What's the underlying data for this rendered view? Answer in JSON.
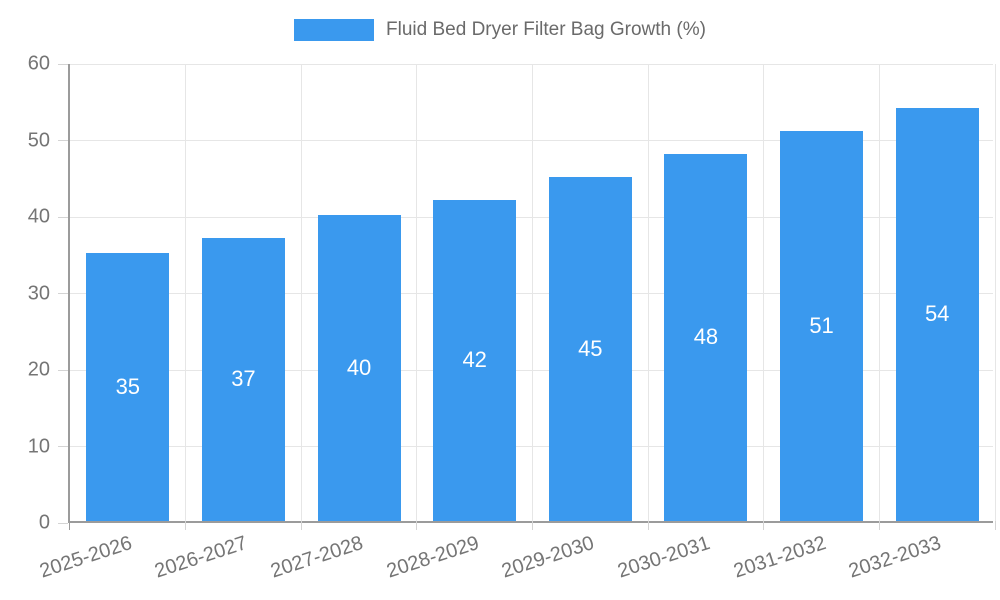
{
  "legend": {
    "label": "Fluid Bed Dryer Filter Bag Growth (%)"
  },
  "colors": {
    "bar": "#3A99EE",
    "grid": "#e6e6e6",
    "axis": "#9b9b9b",
    "tick": "#d4d4d4",
    "axis_text": "#757575",
    "legend_text": "#6a6a6a",
    "bar_label_text": "#ffffff",
    "background": "#ffffff"
  },
  "chart_data": {
    "type": "bar",
    "title": "Fluid Bed Dryer Filter Bag Growth (%)",
    "categories": [
      "2025-2026",
      "2026-2027",
      "2027-2028",
      "2028-2029",
      "2029-2030",
      "2030-2031",
      "2031-2032",
      "2032-2033"
    ],
    "values": [
      35,
      37,
      40,
      42,
      45,
      48,
      51,
      54
    ],
    "xlabel": "",
    "ylabel": "",
    "ylim": [
      0,
      60
    ],
    "yticks": [
      0,
      10,
      20,
      30,
      40,
      50,
      60
    ],
    "grid": true,
    "legend_position": "top-center",
    "value_labels_position": "inside-center",
    "x_label_rotation_deg": -18
  }
}
